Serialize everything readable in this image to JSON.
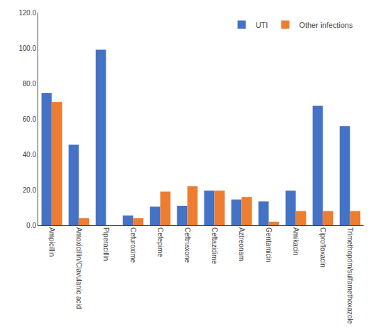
{
  "chart_data": {
    "type": "bar",
    "categories": [
      "Ampicillin",
      "Amoxicillin/Clavulanic acid",
      "Piperacillin",
      "Cefuroxime",
      "Cefepime",
      "Ceftriaxone",
      "Ceftazidime",
      "Aztreonam",
      "Gentamicin",
      "Amikacin",
      "Ciprofloxacin",
      "Trimethoprim/sulfamethoxazole"
    ],
    "series": [
      {
        "name": "UTI",
        "color": "#4472C4",
        "values": [
          74.5,
          45.5,
          99.0,
          5.5,
          10.5,
          11.0,
          19.5,
          14.5,
          13.5,
          19.5,
          67.5,
          56.0
        ]
      },
      {
        "name": "Other infections",
        "color": "#ED7D31",
        "values": [
          69.5,
          4.0,
          0.0,
          4.0,
          19.0,
          22.0,
          19.5,
          16.0,
          2.0,
          8.0,
          8.0,
          8.0
        ]
      }
    ],
    "ylim": [
      0,
      120
    ],
    "yticks": [
      {
        "value": 0,
        "label": "0.0"
      },
      {
        "value": 20,
        "label": "20.0"
      },
      {
        "value": 40,
        "label": "40.0"
      },
      {
        "value": 60,
        "label": "60.0"
      },
      {
        "value": 80,
        "label": "80.0"
      },
      {
        "value": 100,
        "label": "100.0"
      },
      {
        "value": 120,
        "label": "120.0"
      }
    ],
    "grid": false,
    "legend": "upper right"
  }
}
